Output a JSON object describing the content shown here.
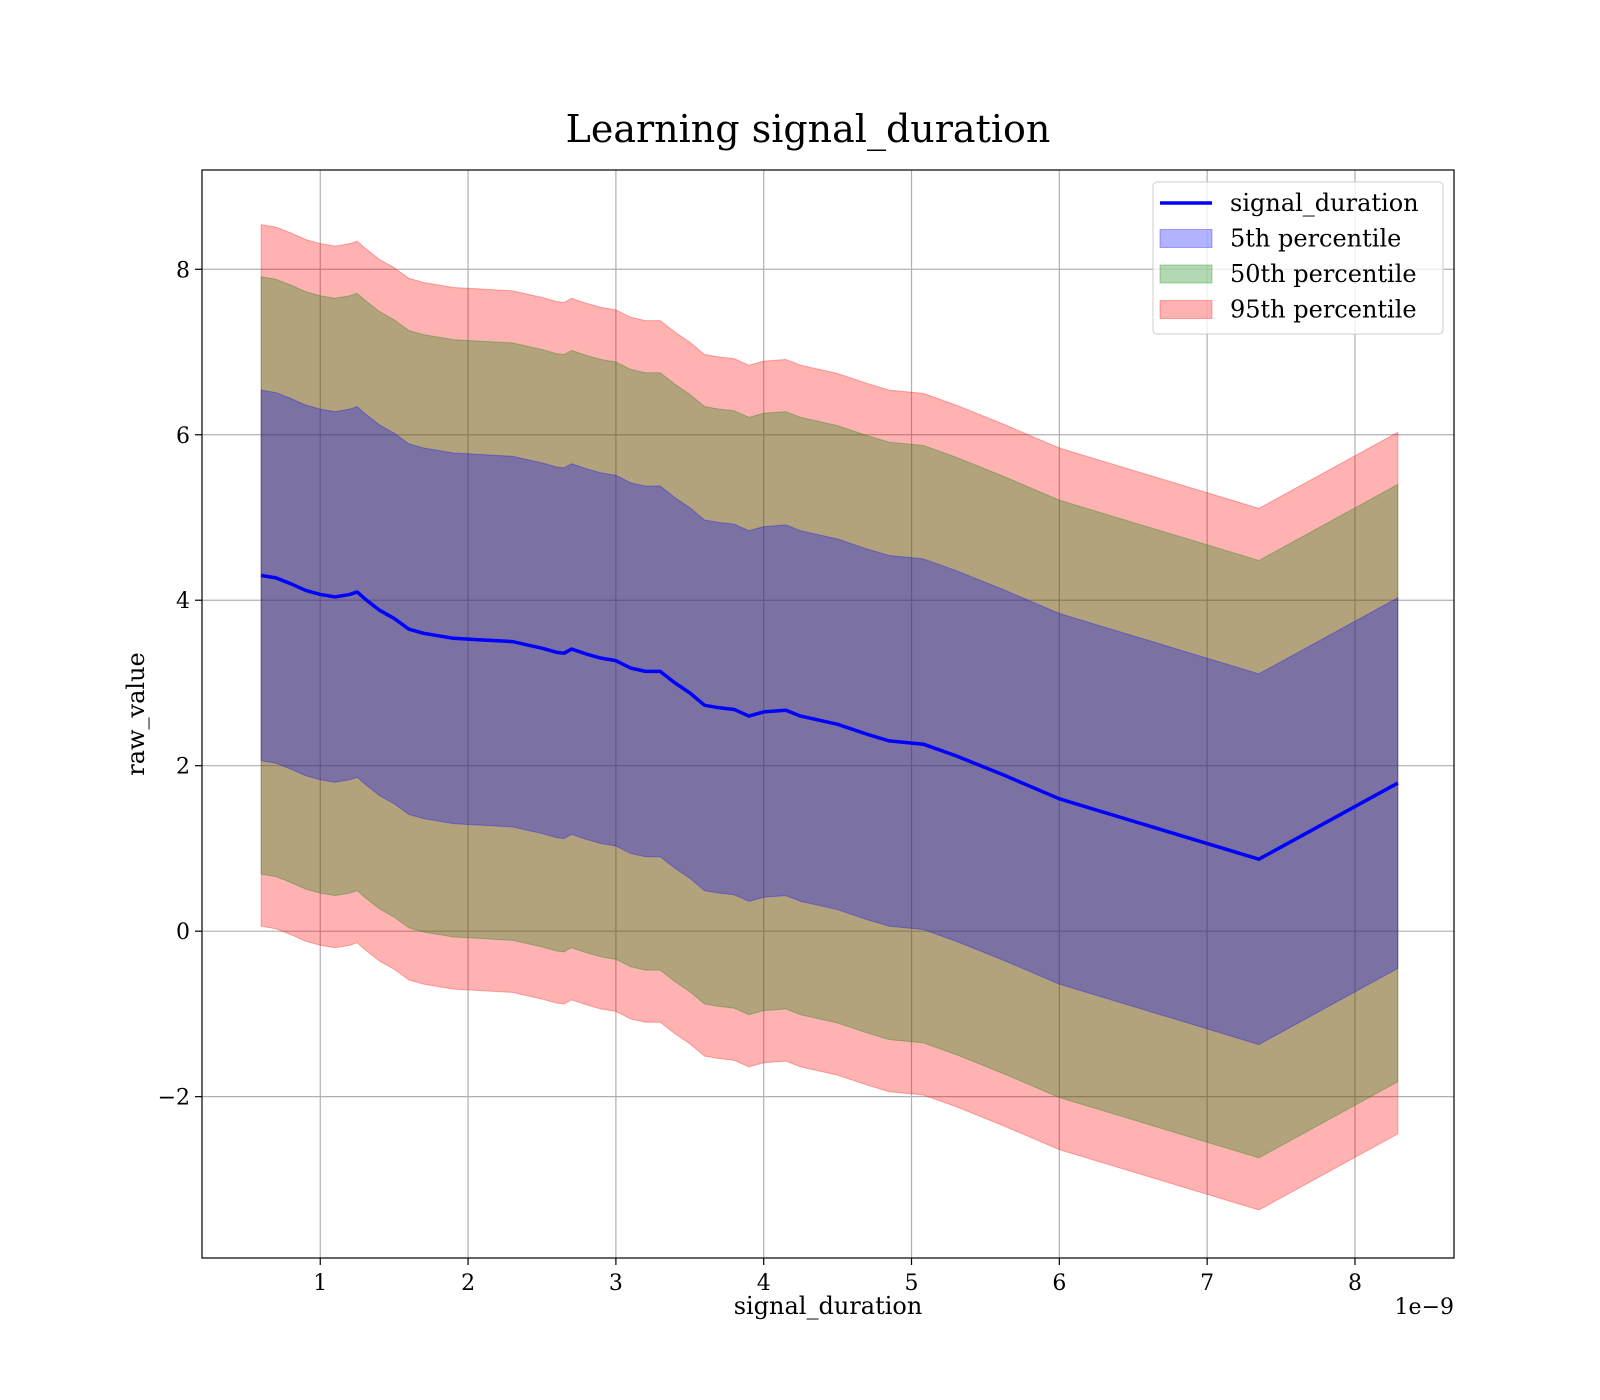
{
  "chart_data": {
    "type": "area",
    "title": "Learning signal_duration",
    "xlabel": "signal_duration",
    "ylabel": "raw_value",
    "x_offset_text": "1e−9",
    "x_multiplier": 1e-09,
    "xlim": [
      0.2,
      8.67
    ],
    "ylim": [
      -3.95,
      9.2
    ],
    "xticks": [
      1,
      2,
      3,
      4,
      5,
      6,
      7,
      8
    ],
    "xtick_labels": [
      "1",
      "2",
      "3",
      "4",
      "5",
      "6",
      "7",
      "8"
    ],
    "yticks": [
      -2,
      0,
      2,
      4,
      6,
      8
    ],
    "ytick_labels": [
      "−2",
      "0",
      "2",
      "4",
      "6",
      "8"
    ],
    "grid": true,
    "legend_position": "top-right",
    "x": [
      0.6,
      0.7,
      0.8,
      0.9,
      1.0,
      1.1,
      1.2,
      1.25,
      1.3,
      1.4,
      1.5,
      1.6,
      1.7,
      1.8,
      1.9,
      2.0,
      2.1,
      2.2,
      2.3,
      2.4,
      2.5,
      2.6,
      2.65,
      2.7,
      2.8,
      2.9,
      3.0,
      3.1,
      3.2,
      3.3,
      3.4,
      3.5,
      3.6,
      3.7,
      3.8,
      3.9,
      4.0,
      4.15,
      4.25,
      4.5,
      4.7,
      4.85,
      5.08,
      5.3,
      5.62,
      6.0,
      7.35,
      8.29
    ],
    "series": [
      {
        "name": "signal_duration",
        "kind": "line",
        "color": "#0000ff",
        "values": [
          4.3,
          4.27,
          4.2,
          4.12,
          4.07,
          4.04,
          4.07,
          4.1,
          4.02,
          3.88,
          3.78,
          3.65,
          3.6,
          3.57,
          3.54,
          3.53,
          3.52,
          3.51,
          3.5,
          3.46,
          3.42,
          3.37,
          3.36,
          3.41,
          3.35,
          3.3,
          3.27,
          3.18,
          3.14,
          3.14,
          3.0,
          2.88,
          2.73,
          2.7,
          2.68,
          2.6,
          2.65,
          2.67,
          2.6,
          2.5,
          2.38,
          2.3,
          2.26,
          2.12,
          1.89,
          1.6,
          0.87,
          1.79
        ]
      },
      {
        "name": "5th percentile",
        "kind": "band",
        "color": "#0000ff",
        "half_width": 2.24
      },
      {
        "name": "50th percentile",
        "kind": "band",
        "color": "#008000",
        "half_width": 3.61
      },
      {
        "name": "95th percentile",
        "kind": "band",
        "color": "#ff0000",
        "half_width": 4.24
      }
    ]
  },
  "legend": {
    "items": [
      {
        "label": "signal_duration",
        "color": "#0000ff",
        "kind": "line"
      },
      {
        "label": "5th percentile",
        "color": "#0000ff",
        "kind": "patch"
      },
      {
        "label": "50th percentile",
        "color": "#008000",
        "kind": "patch"
      },
      {
        "label": "95th percentile",
        "color": "#ff0000",
        "kind": "patch"
      }
    ]
  }
}
